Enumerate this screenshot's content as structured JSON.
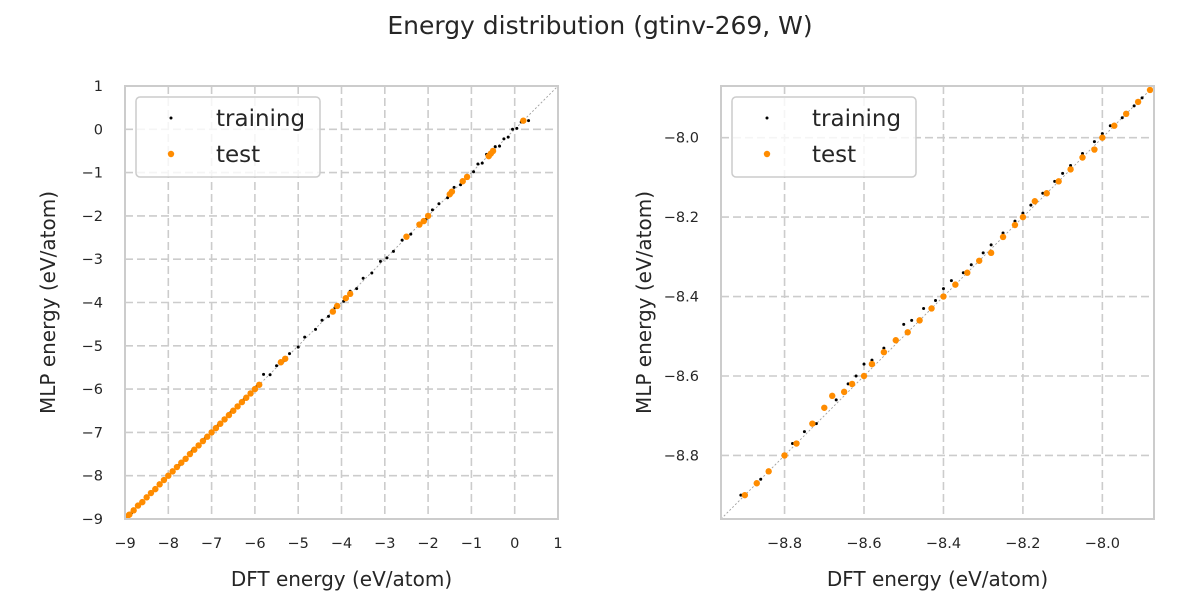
{
  "figure": {
    "title": "Energy distribution (gtinv-269, W)"
  },
  "colors": {
    "training": "#000000",
    "test": "#ff8c00"
  },
  "chart_data": [
    {
      "type": "scatter",
      "title": "",
      "xlabel": "DFT energy (eV/atom)",
      "ylabel": "MLP energy (eV/atom)",
      "xlim": [
        -9,
        1
      ],
      "ylim": [
        -9,
        1
      ],
      "xticks": [
        -9,
        -8,
        -7,
        -6,
        -5,
        -4,
        -3,
        -2,
        -1,
        0,
        1
      ],
      "yticks": [
        -9,
        -8,
        -7,
        -6,
        -5,
        -4,
        -3,
        -2,
        -1,
        0,
        1
      ],
      "xtick_labels": [
        "−9",
        "−8",
        "−7",
        "−6",
        "−5",
        "−4",
        "−3",
        "−2",
        "−1",
        "0",
        "1"
      ],
      "ytick_labels": [
        "−9",
        "−8",
        "−7",
        "−6",
        "−5",
        "−4",
        "−3",
        "−2",
        "−1",
        "0",
        "1"
      ],
      "grid": true,
      "legend_position": "top-left",
      "reference_line": "y = x",
      "series": [
        {
          "name": "training",
          "x": [
            -8.92,
            -8.85,
            -8.78,
            -8.7,
            -8.6,
            -8.5,
            -8.4,
            -8.3,
            -8.2,
            -8.1,
            -8.0,
            -7.9,
            -7.75,
            -7.6,
            -7.45,
            -7.3,
            -7.15,
            -7.0,
            -6.85,
            -6.7,
            -6.55,
            -6.4,
            -6.25,
            -6.1,
            -5.95,
            -5.8,
            -5.65,
            -5.5,
            -5.35,
            -5.2,
            -5.0,
            -4.85,
            -4.6,
            -4.45,
            -4.3,
            -4.15,
            -3.95,
            -3.8,
            -3.65,
            -3.5,
            -3.3,
            -3.1,
            -2.95,
            -2.8,
            -2.6,
            -2.4,
            -2.2,
            -2.05,
            -1.9,
            -1.75,
            -1.55,
            -1.4,
            -1.25,
            -1.1,
            -0.95,
            -0.85,
            -0.75,
            -0.65,
            -0.55,
            -0.45,
            -0.35,
            -0.25,
            -0.15,
            -0.05,
            0.05,
            0.15,
            0.32
          ],
          "y": [
            -8.91,
            -8.86,
            -8.77,
            -8.71,
            -8.59,
            -8.52,
            -8.39,
            -8.31,
            -8.21,
            -8.08,
            -8.01,
            -7.88,
            -7.76,
            -7.61,
            -7.43,
            -7.31,
            -7.14,
            -7.02,
            -6.84,
            -6.71,
            -6.53,
            -6.41,
            -6.24,
            -6.12,
            -5.93,
            -5.66,
            -5.67,
            -5.46,
            -5.36,
            -5.18,
            -5.03,
            -4.8,
            -4.62,
            -4.41,
            -4.32,
            -4.12,
            -3.97,
            -3.74,
            -3.68,
            -3.44,
            -3.32,
            -3.05,
            -2.97,
            -2.82,
            -2.56,
            -2.42,
            -2.17,
            -2.08,
            -1.86,
            -1.72,
            -1.58,
            -1.34,
            -1.28,
            -1.06,
            -0.98,
            -0.8,
            -0.78,
            -0.58,
            -0.6,
            -0.4,
            -0.39,
            -0.22,
            -0.18,
            0.0,
            0.02,
            0.17,
            0.2
          ]
        },
        {
          "name": "test",
          "x": [
            -8.95,
            -8.9,
            -8.8,
            -8.7,
            -8.6,
            -8.5,
            -8.4,
            -8.3,
            -8.2,
            -8.1,
            -8.0,
            -7.9,
            -7.8,
            -7.7,
            -7.6,
            -7.5,
            -7.4,
            -7.3,
            -7.2,
            -7.1,
            -7.0,
            -6.9,
            -6.8,
            -6.7,
            -6.6,
            -6.5,
            -6.4,
            -6.3,
            -6.2,
            -6.1,
            -6.0,
            -5.9,
            -5.4,
            -5.3,
            -4.2,
            -4.1,
            -3.9,
            -3.8,
            -2.5,
            -2.2,
            -2.1,
            -2.0,
            -1.5,
            -1.45,
            -1.2,
            -1.1,
            -0.6,
            -0.55,
            -0.5,
            0.2
          ],
          "y": [
            -8.94,
            -8.9,
            -8.8,
            -8.69,
            -8.61,
            -8.5,
            -8.4,
            -8.31,
            -8.2,
            -8.1,
            -8.0,
            -7.9,
            -7.8,
            -7.7,
            -7.61,
            -7.5,
            -7.4,
            -7.3,
            -7.2,
            -7.1,
            -7.0,
            -6.9,
            -6.8,
            -6.7,
            -6.6,
            -6.5,
            -6.4,
            -6.3,
            -6.2,
            -6.1,
            -6.0,
            -5.9,
            -5.38,
            -5.3,
            -4.21,
            -4.08,
            -3.9,
            -3.8,
            -2.48,
            -2.2,
            -2.12,
            -2.0,
            -1.5,
            -1.44,
            -1.2,
            -1.1,
            -0.62,
            -0.56,
            -0.5,
            0.2
          ]
        }
      ]
    },
    {
      "type": "scatter",
      "title": "",
      "xlabel": "DFT energy (eV/atom)",
      "ylabel": "MLP energy (eV/atom)",
      "xlim": [
        -8.96,
        -7.87
      ],
      "ylim": [
        -8.96,
        -7.87
      ],
      "xticks": [
        -8.8,
        -8.6,
        -8.4,
        -8.2,
        -8.0
      ],
      "yticks": [
        -8.8,
        -8.6,
        -8.4,
        -8.2,
        -8.0
      ],
      "xtick_labels": [
        "−8.8",
        "−8.6",
        "−8.4",
        "−8.2",
        "−8.0"
      ],
      "ytick_labels": [
        "−8.8",
        "−8.6",
        "−8.4",
        "−8.2",
        "−8.0"
      ],
      "grid": true,
      "legend_position": "top-left",
      "reference_line": "y = x",
      "series": [
        {
          "name": "training",
          "x": [
            -8.91,
            -8.86,
            -8.8,
            -8.78,
            -8.75,
            -8.72,
            -8.7,
            -8.67,
            -8.64,
            -8.62,
            -8.6,
            -8.58,
            -8.55,
            -8.52,
            -8.5,
            -8.48,
            -8.45,
            -8.42,
            -8.4,
            -8.38,
            -8.35,
            -8.33,
            -8.3,
            -8.28,
            -8.25,
            -8.22,
            -8.2,
            -8.18,
            -8.15,
            -8.12,
            -8.1,
            -8.08,
            -8.05,
            -8.02,
            -8.0,
            -7.98,
            -7.95,
            -7.92,
            -7.9,
            -7.88
          ],
          "y": [
            -8.9,
            -8.86,
            -8.8,
            -8.77,
            -8.74,
            -8.72,
            -8.68,
            -8.66,
            -8.62,
            -8.6,
            -8.57,
            -8.56,
            -8.53,
            -8.51,
            -8.47,
            -8.46,
            -8.43,
            -8.41,
            -8.38,
            -8.36,
            -8.34,
            -8.32,
            -8.29,
            -8.27,
            -8.24,
            -8.21,
            -8.19,
            -8.17,
            -8.14,
            -8.11,
            -8.09,
            -8.07,
            -8.04,
            -8.01,
            -7.99,
            -7.97,
            -7.95,
            -7.92,
            -7.9,
            -7.88
          ]
        },
        {
          "name": "test",
          "x": [
            -8.9,
            -8.87,
            -8.84,
            -8.8,
            -8.77,
            -8.73,
            -8.7,
            -8.68,
            -8.65,
            -8.63,
            -8.6,
            -8.58,
            -8.55,
            -8.52,
            -8.49,
            -8.46,
            -8.43,
            -8.4,
            -8.37,
            -8.34,
            -8.31,
            -8.28,
            -8.25,
            -8.22,
            -8.2,
            -8.17,
            -8.14,
            -8.11,
            -8.08,
            -8.05,
            -8.02,
            -8.0,
            -7.97,
            -7.94,
            -7.91,
            -7.88
          ],
          "y": [
            -8.9,
            -8.87,
            -8.84,
            -8.8,
            -8.77,
            -8.72,
            -8.68,
            -8.65,
            -8.64,
            -8.62,
            -8.6,
            -8.57,
            -8.54,
            -8.51,
            -8.49,
            -8.46,
            -8.43,
            -8.4,
            -8.37,
            -8.34,
            -8.31,
            -8.29,
            -8.25,
            -8.22,
            -8.2,
            -8.16,
            -8.14,
            -8.11,
            -8.08,
            -8.05,
            -8.03,
            -8.0,
            -7.97,
            -7.94,
            -7.91,
            -7.88
          ]
        }
      ]
    }
  ]
}
